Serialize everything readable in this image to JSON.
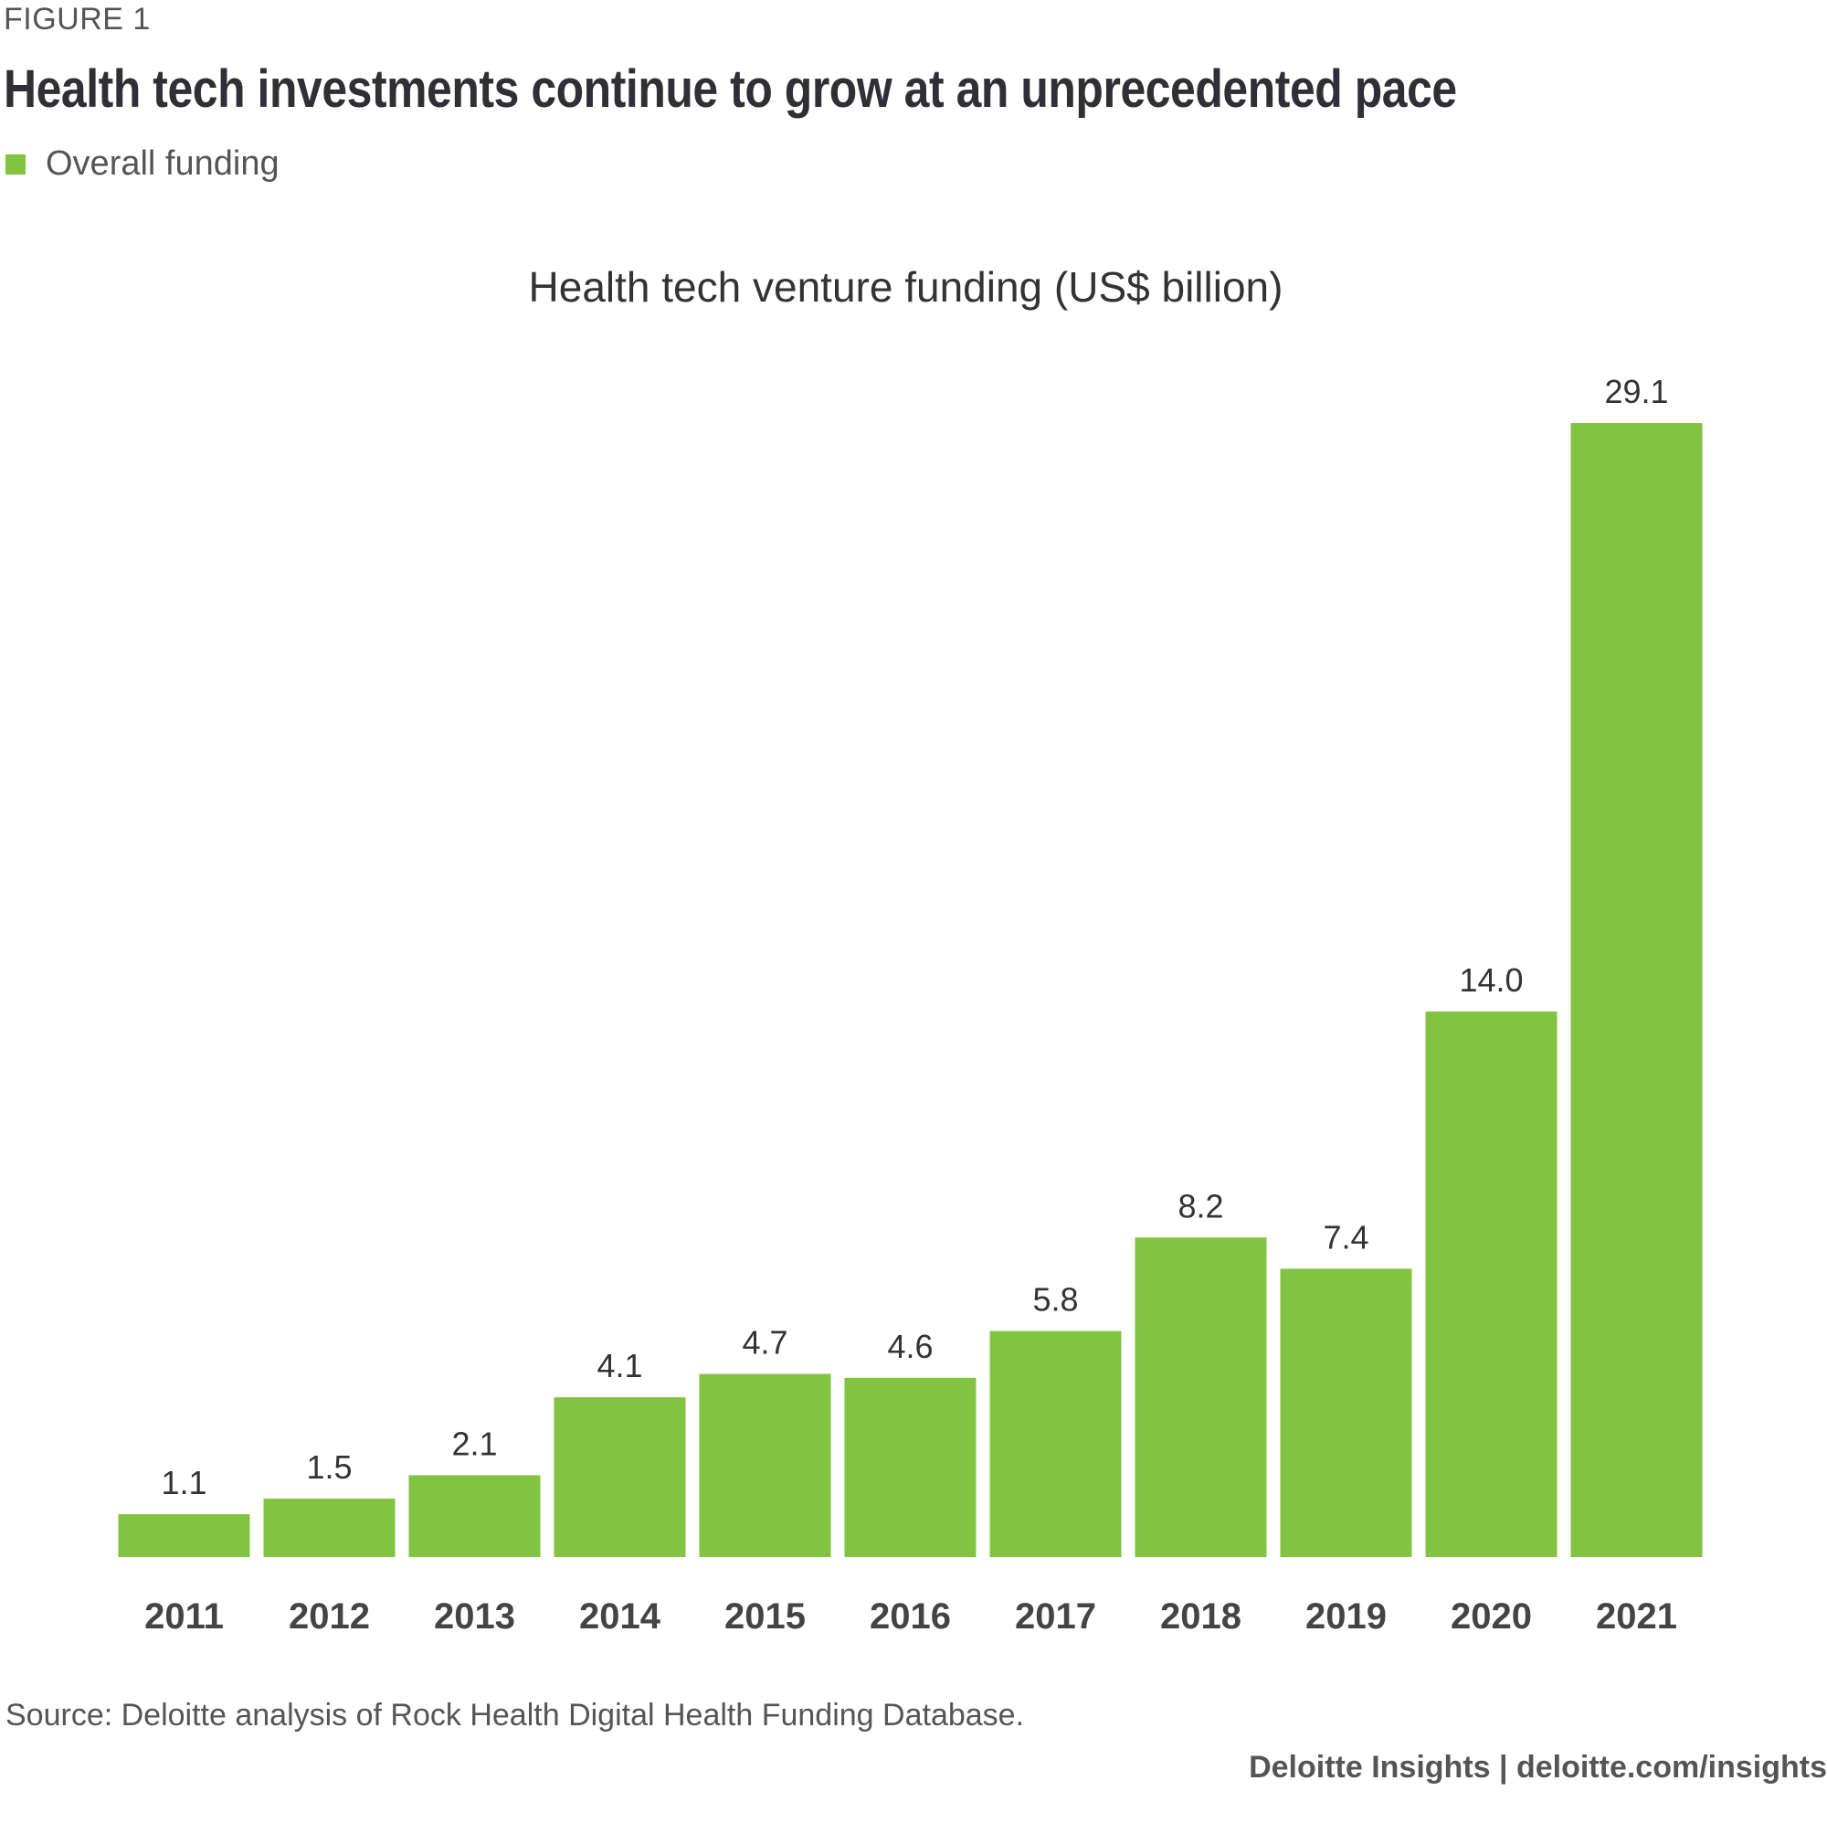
{
  "figure_label": "FIGURE 1",
  "headline": "Health tech investments continue to grow at an unprecedented pace",
  "legend": {
    "label": "Overall funding",
    "color": "#82c341"
  },
  "chart_data": {
    "type": "bar",
    "title": "Health tech venture funding (US$ billion)",
    "xlabel": "",
    "ylabel": "",
    "categories": [
      "2011",
      "2012",
      "2013",
      "2014",
      "2015",
      "2016",
      "2017",
      "2018",
      "2019",
      "2020",
      "2021"
    ],
    "series": [
      {
        "name": "Overall funding",
        "values": [
          1.1,
          1.5,
          2.1,
          4.1,
          4.7,
          4.6,
          5.8,
          8.2,
          7.4,
          14.0,
          29.1
        ],
        "labels": [
          "1.1",
          "1.5",
          "2.1",
          "4.1",
          "4.7",
          "4.6",
          "5.8",
          "8.2",
          "7.4",
          "14.0",
          "29.1"
        ],
        "color": "#82c341"
      }
    ],
    "ylim": [
      0,
      29.1
    ],
    "grid": false,
    "legend_position": "top-left"
  },
  "source": "Source: Deloitte analysis of Rock Health Digital Health Funding Database.",
  "credit": "Deloitte Insights | deloitte.com/insights"
}
